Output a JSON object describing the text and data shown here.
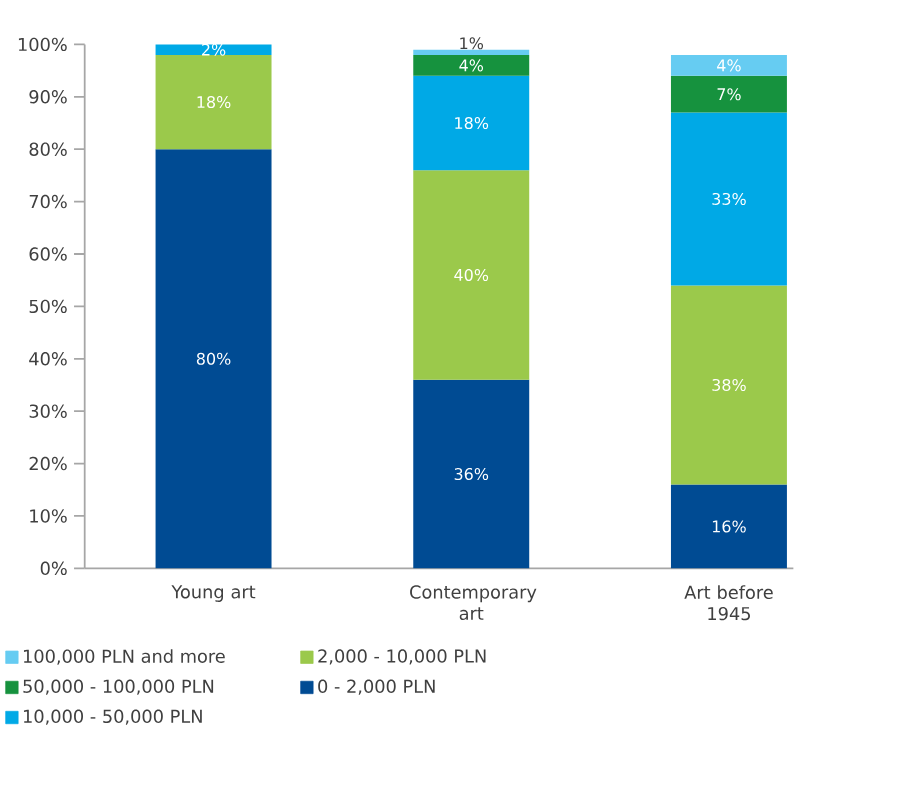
{
  "chart_data": {
    "type": "bar",
    "stacked": true,
    "categories": [
      "Young art",
      "Contemporary art",
      "Art before 1945"
    ],
    "series": [
      {
        "name": "0 - 2,000 PLN",
        "color": "#004b93",
        "values": [
          80,
          36,
          16
        ],
        "value_labels": [
          "80%",
          "36%",
          "16%"
        ]
      },
      {
        "name": "2,000 - 10,000 PLN",
        "color": "#9bc94b",
        "values": [
          18,
          40,
          38
        ],
        "value_labels": [
          "18%",
          "40%",
          "38%"
        ]
      },
      {
        "name": "10,000 - 50,000 PLN",
        "color": "#00a9e6",
        "values": [
          2,
          18,
          33
        ],
        "value_labels": [
          "2%",
          "18%",
          "33%"
        ]
      },
      {
        "name": "50,000 - 100,000 PLN",
        "color": "#16923e",
        "values": [
          null,
          4,
          7
        ],
        "value_labels": [
          null,
          "4%",
          "7%"
        ]
      },
      {
        "name": "100,000 PLN and more",
        "color": "#66ccf2",
        "values": [
          null,
          1,
          4
        ],
        "value_labels": [
          null,
          "1%",
          "4%"
        ]
      }
    ],
    "ylim": [
      0,
      100
    ],
    "yticks": [
      {
        "value": 0,
        "label": "0%"
      },
      {
        "value": 10,
        "label": "10%"
      },
      {
        "value": 20,
        "label": "20%"
      },
      {
        "value": 30,
        "label": "30%"
      },
      {
        "value": 40,
        "label": "40%"
      },
      {
        "value": 50,
        "label": "50%"
      },
      {
        "value": 60,
        "label": "60%"
      },
      {
        "value": 70,
        "label": "70%"
      },
      {
        "value": 80,
        "label": "80%"
      },
      {
        "value": 90,
        "label": "90%"
      },
      {
        "value": 100,
        "label": "100%"
      }
    ],
    "legend": "bottom"
  }
}
